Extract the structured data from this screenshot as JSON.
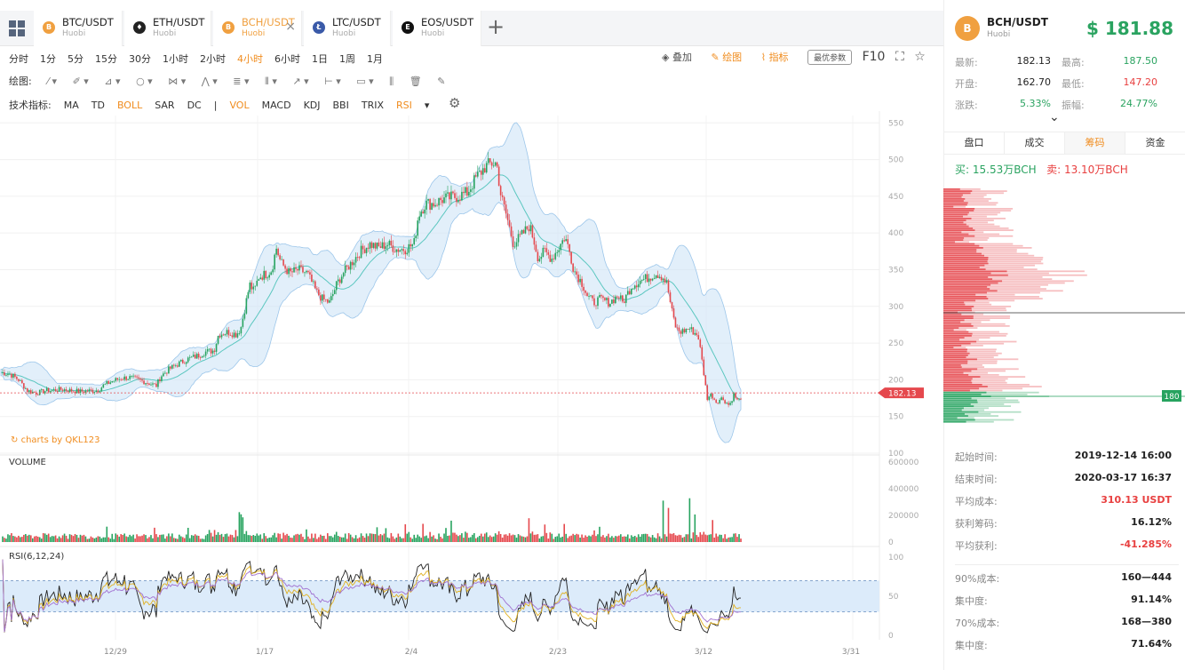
{
  "tabs": [
    {
      "pair": "BTC/USDT",
      "exchange": "Huobi",
      "coin": "B",
      "color": "#f0a040",
      "left": 0
    },
    {
      "pair": "ETH/USDT",
      "exchange": "Huobi",
      "coin": "♦",
      "color": "#222222"
    },
    {
      "pair": "BCH/USDT",
      "exchange": "Huobi",
      "coin": "B",
      "color": "#f0a040",
      "active": true,
      "close": "×"
    },
    {
      "pair": "LTC/USDT",
      "exchange": "Huobi",
      "coin": "Ł",
      "color": "#3a5aa8"
    },
    {
      "pair": "EOS/USDT",
      "exchange": "Huobi",
      "coin": "E",
      "color": "#111111"
    }
  ],
  "add_tab": "+",
  "timeframes": [
    "分时",
    "1分",
    "5分",
    "15分",
    "30分",
    "1小时",
    "2小时",
    "4小时",
    "6小时",
    "1日",
    "1周",
    "1月"
  ],
  "active_timeframe": "4小时",
  "right_tools": {
    "overlay": "叠加",
    "draw": "绘图",
    "indicator": "指标",
    "best_params": "最优参数",
    "f10": "F10"
  },
  "draw_label": "绘图:",
  "indicator_label": "技术指标:",
  "indicators": [
    "MA",
    "TD",
    "BOLL",
    "SAR",
    "DC",
    "|",
    "VOL",
    "MACD",
    "KDJ",
    "BBI",
    "TRIX",
    "RSI"
  ],
  "active_indicators": [
    "BOLL",
    "VOL",
    "RSI"
  ],
  "watermark": "charts by QKL123",
  "volume_label": "VOLUME",
  "rsi_label": "RSI(6,12,24)",
  "chart_data": {
    "type": "candlestick",
    "symbol": "BCH/USDT",
    "price_axis": {
      "ylim": [
        100,
        560
      ],
      "ticks": [
        550,
        500,
        450,
        400,
        350,
        300,
        250,
        200,
        150,
        100
      ]
    },
    "volume_axis": {
      "ylim": [
        0,
        600000
      ],
      "ticks": [
        "600000",
        "400000",
        "200000",
        "0"
      ]
    },
    "rsi_axis": {
      "ylim": [
        0,
        100
      ],
      "ticks": [
        100,
        50,
        0
      ],
      "bands": [
        70,
        30
      ]
    },
    "x_ticks": [
      "12/29",
      "1/17",
      "2/4",
      "2/23",
      "3/12",
      "3/31"
    ],
    "last_price_label": "182.13",
    "marker_label": "180",
    "close_path": [
      [
        0,
        210
      ],
      [
        10,
        208
      ],
      [
        20,
        200
      ],
      [
        30,
        185
      ],
      [
        40,
        182
      ],
      [
        50,
        185
      ],
      [
        60,
        186
      ],
      [
        70,
        187
      ],
      [
        80,
        185
      ],
      [
        90,
        184
      ],
      [
        100,
        185
      ],
      [
        110,
        186
      ],
      [
        115,
        192
      ],
      [
        125,
        198
      ],
      [
        135,
        202
      ],
      [
        145,
        203
      ],
      [
        155,
        200
      ],
      [
        165,
        196
      ],
      [
        175,
        192
      ],
      [
        180,
        205
      ],
      [
        190,
        215
      ],
      [
        200,
        222
      ],
      [
        210,
        228
      ],
      [
        220,
        232
      ],
      [
        230,
        238
      ],
      [
        240,
        240
      ],
      [
        245,
        262
      ],
      [
        255,
        265
      ],
      [
        265,
        262
      ],
      [
        270,
        270
      ],
      [
        275,
        300
      ],
      [
        280,
        330
      ],
      [
        285,
        320
      ],
      [
        290,
        340
      ],
      [
        300,
        345
      ],
      [
        305,
        350
      ],
      [
        310,
        380
      ],
      [
        315,
        360
      ],
      [
        325,
        345
      ],
      [
        335,
        350
      ],
      [
        345,
        345
      ],
      [
        355,
        320
      ],
      [
        362,
        310
      ],
      [
        370,
        305
      ],
      [
        378,
        330
      ],
      [
        385,
        345
      ],
      [
        395,
        360
      ],
      [
        405,
        375
      ],
      [
        415,
        385
      ],
      [
        425,
        380
      ],
      [
        435,
        385
      ],
      [
        445,
        378
      ],
      [
        455,
        378
      ],
      [
        465,
        385
      ],
      [
        470,
        425
      ],
      [
        478,
        440
      ],
      [
        488,
        440
      ],
      [
        495,
        445
      ],
      [
        505,
        448
      ],
      [
        515,
        450
      ],
      [
        525,
        455
      ],
      [
        535,
        475
      ],
      [
        545,
        490
      ],
      [
        552,
        495
      ],
      [
        558,
        495
      ],
      [
        563,
        450
      ],
      [
        570,
        420
      ],
      [
        577,
        385
      ],
      [
        585,
        395
      ],
      [
        595,
        410
      ],
      [
        600,
        390
      ],
      [
        605,
        365
      ],
      [
        612,
        375
      ],
      [
        620,
        365
      ],
      [
        628,
        380
      ],
      [
        635,
        395
      ],
      [
        640,
        375
      ],
      [
        645,
        350
      ],
      [
        650,
        340
      ],
      [
        655,
        330
      ],
      [
        660,
        315
      ],
      [
        667,
        305
      ],
      [
        675,
        310
      ],
      [
        685,
        305
      ],
      [
        695,
        315
      ],
      [
        700,
        305
      ],
      [
        710,
        328
      ],
      [
        720,
        335
      ],
      [
        730,
        340
      ],
      [
        738,
        345
      ],
      [
        745,
        340
      ],
      [
        750,
        330
      ],
      [
        755,
        295
      ],
      [
        760,
        270
      ],
      [
        765,
        265
      ],
      [
        775,
        270
      ],
      [
        785,
        260
      ],
      [
        790,
        220
      ],
      [
        795,
        175
      ],
      [
        800,
        180
      ],
      [
        805,
        170
      ],
      [
        812,
        175
      ],
      [
        820,
        165
      ],
      [
        825,
        180
      ],
      [
        830,
        170
      ],
      [
        835,
        182
      ]
    ]
  },
  "right_panel": {
    "symbol": "BCH/USDT",
    "exchange": "Huobi",
    "logo": "B",
    "price": "$ 181.88",
    "stats": [
      [
        {
          "k": "最新:",
          "v": "182.13",
          "c": "#222"
        },
        {
          "k": "最高:",
          "v": "187.50",
          "c": "#2aa360"
        }
      ],
      [
        {
          "k": "开盘:",
          "v": "162.70",
          "c": "#222"
        },
        {
          "k": "最低:",
          "v": "147.20",
          "c": "#e84040"
        }
      ],
      [
        {
          "k": "涨跌:",
          "v": "5.33%",
          "c": "#2aa360"
        },
        {
          "k": "振幅:",
          "v": "24.77%",
          "c": "#2aa360"
        }
      ]
    ],
    "expand": "⌄",
    "tabs": [
      "盘口",
      "成交",
      "筹码",
      "资金"
    ],
    "active_tab": "筹码",
    "buy": "买: 15.53万BCH",
    "sell": "卖: 13.10万BCH",
    "info": [
      {
        "k": "起始时间:",
        "v": "2019-12-14 16:00",
        "c": "#222"
      },
      {
        "k": "结束时间:",
        "v": "2020-03-17 16:37",
        "c": "#222"
      },
      {
        "k": "平均成本:",
        "v": "310.13 USDT",
        "c": "#e84040"
      },
      {
        "k": "获利筹码:",
        "v": "16.12%",
        "c": "#222"
      },
      {
        "k": "平均获利:",
        "v": "-41.285%",
        "c": "#e84040"
      },
      {
        "k": "90%成本:",
        "v": "160—444",
        "c": "#222",
        "sep": true
      },
      {
        "k": "集中度:",
        "v": "91.14%",
        "c": "#222"
      },
      {
        "k": "70%成本:",
        "v": "168—380",
        "c": "#222"
      },
      {
        "k": "集中度:",
        "v": "71.64%",
        "c": "#222"
      }
    ]
  }
}
